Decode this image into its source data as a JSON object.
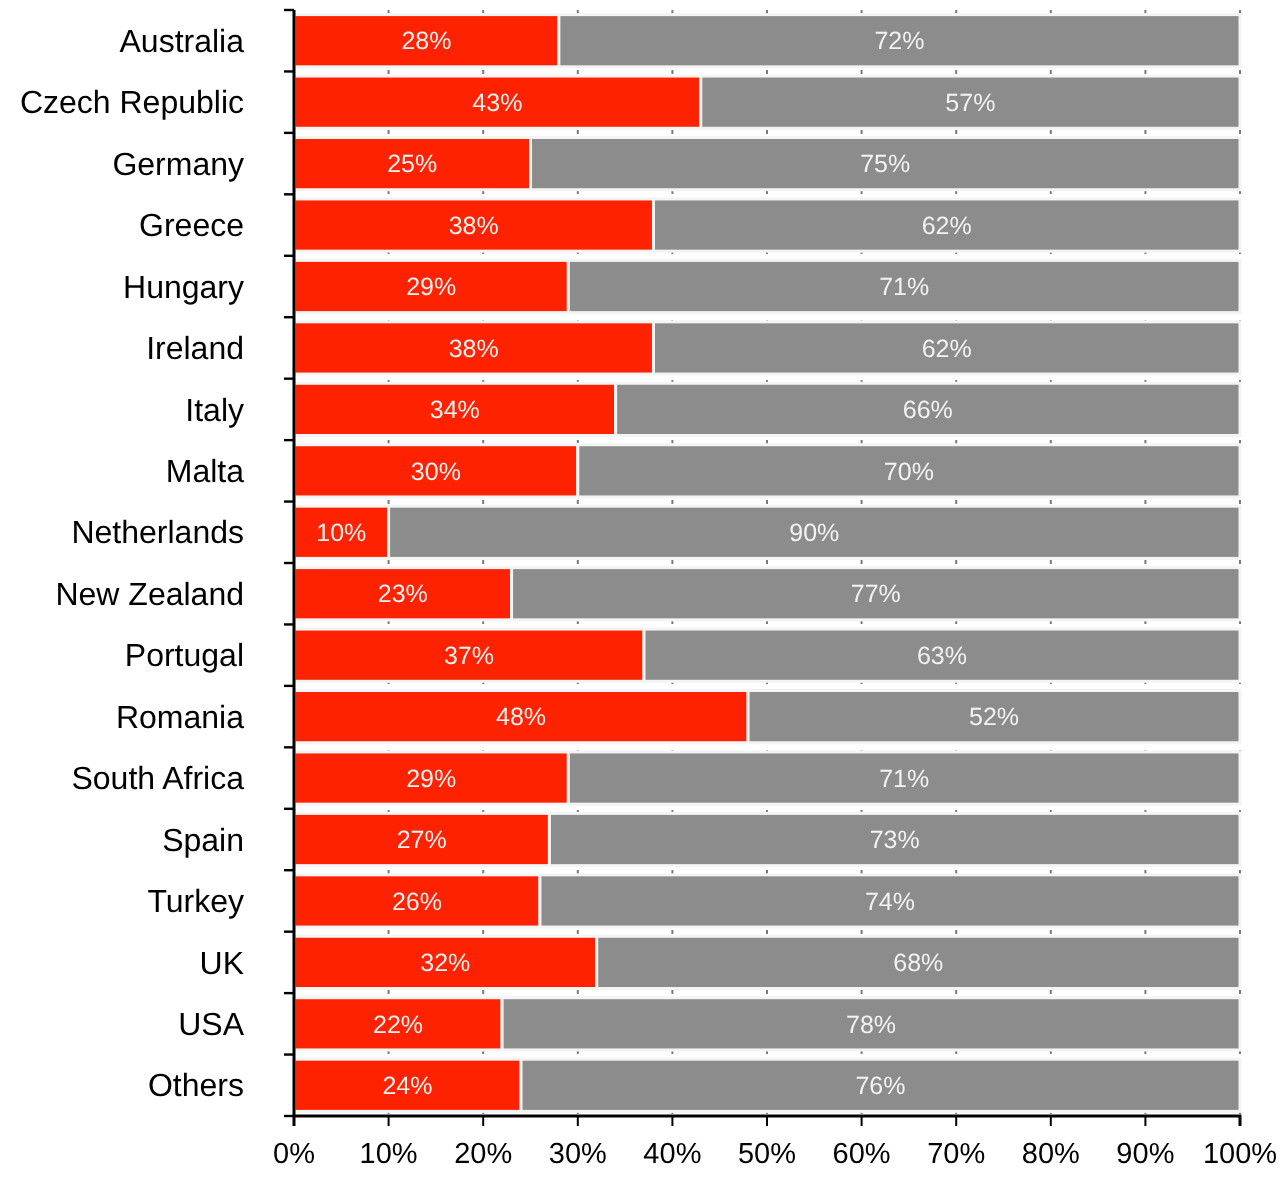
{
  "chart_data": {
    "type": "bar",
    "orientation": "horizontal",
    "stacked": true,
    "categories": [
      "Australia",
      "Czech Republic",
      "Germany",
      "Greece",
      "Hungary",
      "Ireland",
      "Italy",
      "Malta",
      "Netherlands",
      "New Zealand",
      "Portugal",
      "Romania",
      "South Africa",
      "Spain",
      "Turkey",
      "UK",
      "USA",
      "Others"
    ],
    "series": [
      {
        "color": "#ff2200",
        "values": [
          28,
          43,
          25,
          38,
          29,
          38,
          34,
          30,
          10,
          23,
          37,
          48,
          29,
          27,
          26,
          32,
          22,
          24
        ],
        "value_labels": [
          "28%",
          "43%",
          "25%",
          "38%",
          "29%",
          "38%",
          "34%",
          "30%",
          "10%",
          "23%",
          "37%",
          "48%",
          "29%",
          "27%",
          "26%",
          "32%",
          "22%",
          "24%"
        ]
      },
      {
        "color": "#8c8c8c",
        "values": [
          72,
          57,
          75,
          62,
          71,
          62,
          66,
          70,
          90,
          77,
          63,
          52,
          71,
          73,
          74,
          68,
          78,
          76
        ],
        "value_labels": [
          "72%",
          "57%",
          "75%",
          "62%",
          "71%",
          "62%",
          "66%",
          "70%",
          "90%",
          "77%",
          "63%",
          "52%",
          "71%",
          "73%",
          "74%",
          "68%",
          "78%",
          "76%"
        ]
      }
    ],
    "xlim": [
      0,
      100
    ],
    "xticks": [
      {
        "value": 0,
        "label": "0%"
      },
      {
        "value": 10,
        "label": "10%"
      },
      {
        "value": 20,
        "label": "20%"
      },
      {
        "value": 30,
        "label": "30%"
      },
      {
        "value": 40,
        "label": "40%"
      },
      {
        "value": 50,
        "label": "50%"
      },
      {
        "value": 60,
        "label": "60%"
      },
      {
        "value": 70,
        "label": "70%"
      },
      {
        "value": 80,
        "label": "80%"
      },
      {
        "value": 90,
        "label": "90%"
      },
      {
        "value": 100,
        "label": "100%"
      }
    ],
    "grid": "x"
  }
}
